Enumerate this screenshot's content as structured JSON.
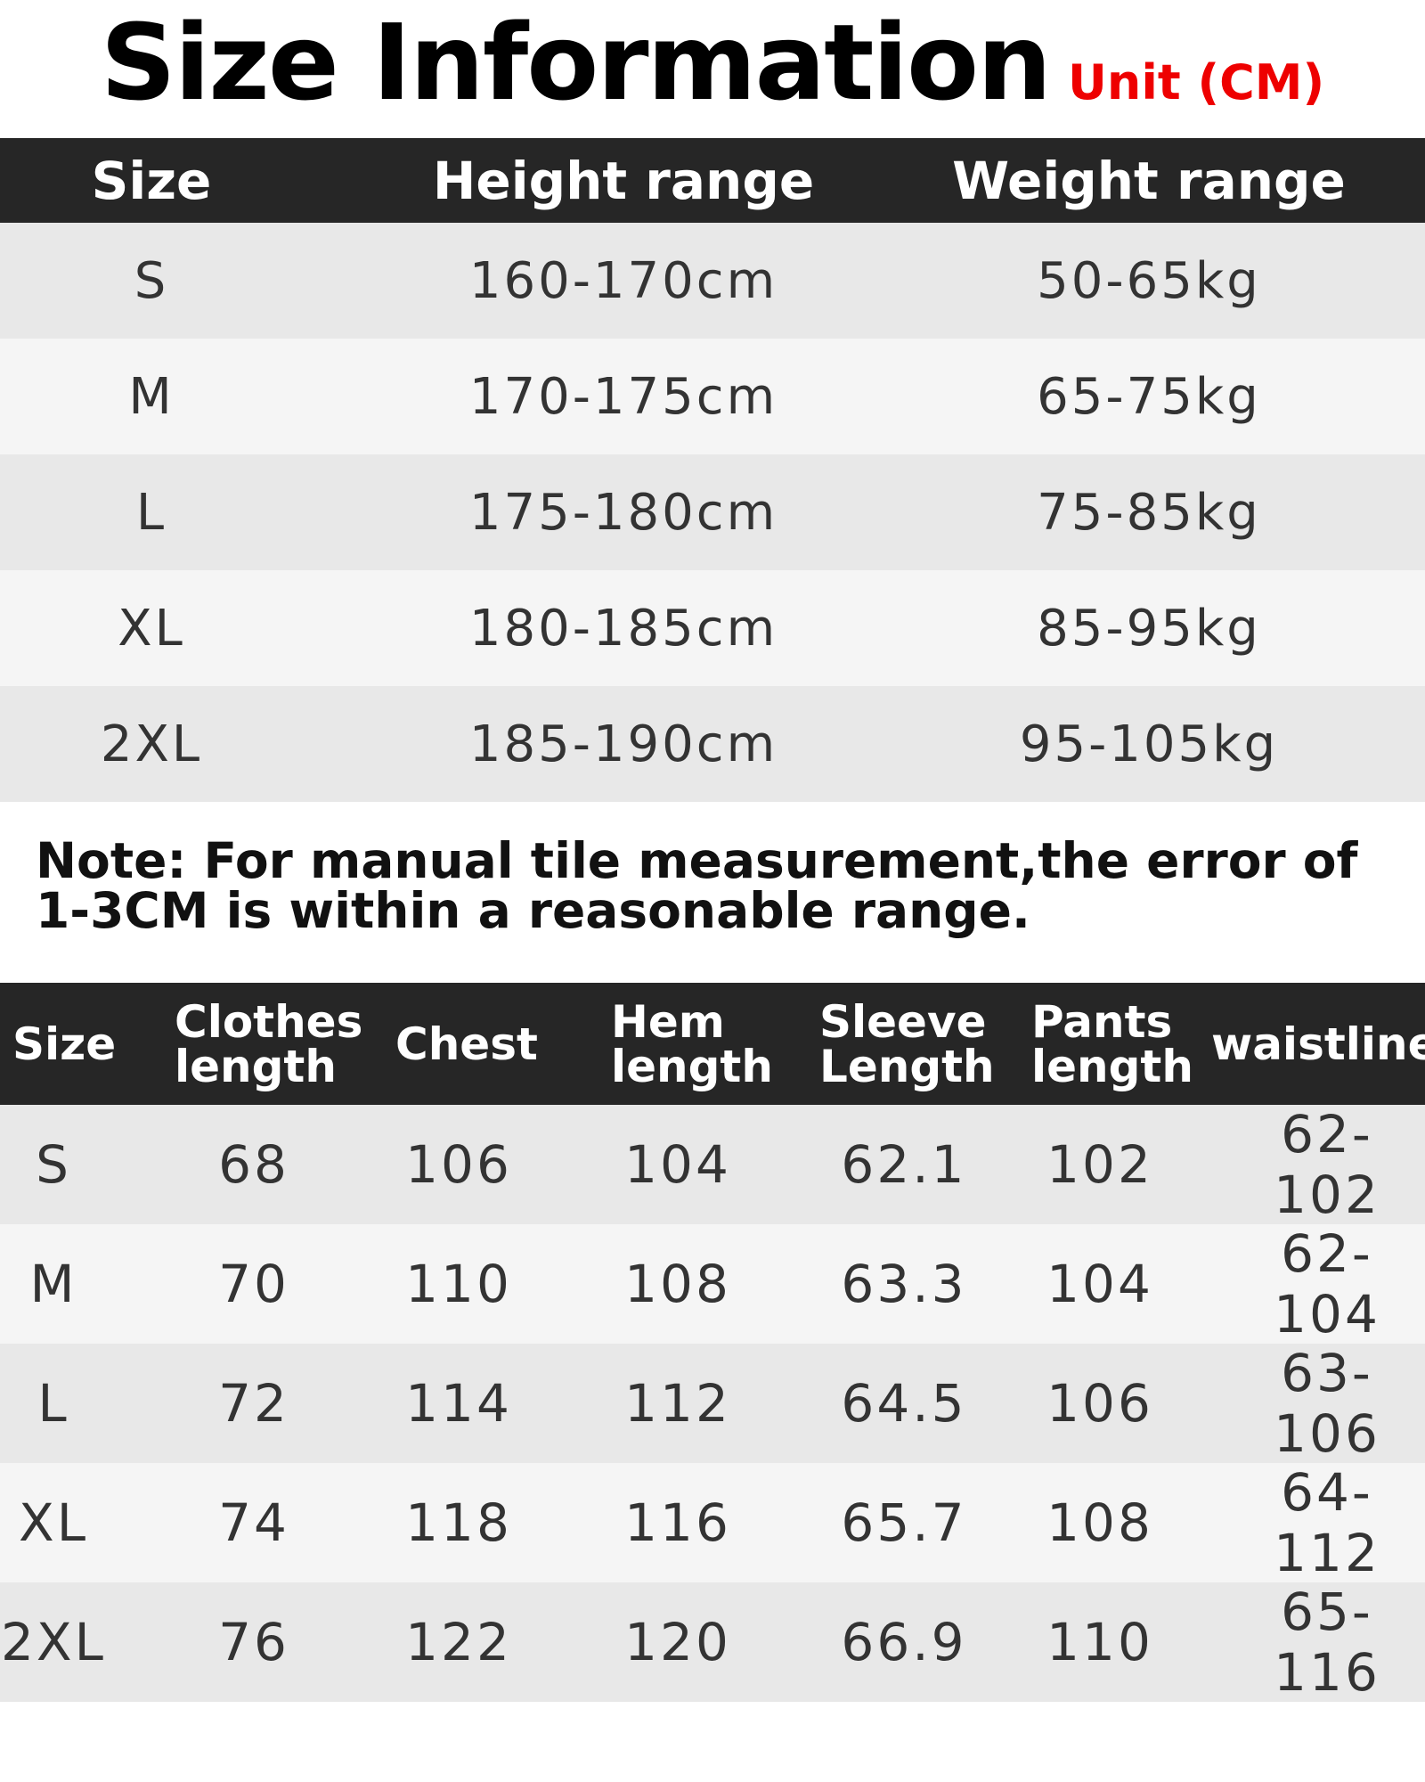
{
  "header": {
    "title": "Size Information",
    "unit": "Unit (CM)"
  },
  "size_range_table": {
    "columns": [
      "Size",
      "Height range",
      "Weight range"
    ],
    "rows": [
      [
        "S",
        "160-170cm",
        "50-65kg"
      ],
      [
        "M",
        "170-175cm",
        "65-75kg"
      ],
      [
        "L",
        "175-180cm",
        "75-85kg"
      ],
      [
        "XL",
        "180-185cm",
        "85-95kg"
      ],
      [
        "2XL",
        "185-190cm",
        "95-105kg"
      ]
    ]
  },
  "note": {
    "line1": "Note: For manual tile measurement,the error of",
    "line2": "1-3CM is within a reasonable range."
  },
  "measurement_table": {
    "columns": [
      {
        "line1": "Size",
        "line2": ""
      },
      {
        "line1": "Clothes",
        "line2": "length"
      },
      {
        "line1": "Chest",
        "line2": ""
      },
      {
        "line1": "Hem",
        "line2": "length"
      },
      {
        "line1": "Sleeve",
        "line2": "Length"
      },
      {
        "line1": "Pants",
        "line2": "length"
      },
      {
        "line1": "waistline",
        "line2": ""
      }
    ],
    "rows": [
      [
        "S",
        "68",
        "106",
        "104",
        "62.1",
        "102",
        "62-102"
      ],
      [
        "M",
        "70",
        "110",
        "108",
        "63.3",
        "104",
        "62-104"
      ],
      [
        "L",
        "72",
        "114",
        "112",
        "64.5",
        "106",
        "63-106"
      ],
      [
        "XL",
        "74",
        "118",
        "116",
        "65.7",
        "108",
        "64-112"
      ],
      [
        "2XL",
        "76",
        "122",
        "120",
        "66.9",
        "110",
        "65-116"
      ]
    ]
  },
  "colors": {
    "header_bg": "#262626",
    "unit_red": "#ee0000",
    "row_odd": "#e8e8e8",
    "row_even": "#f5f5f5"
  }
}
